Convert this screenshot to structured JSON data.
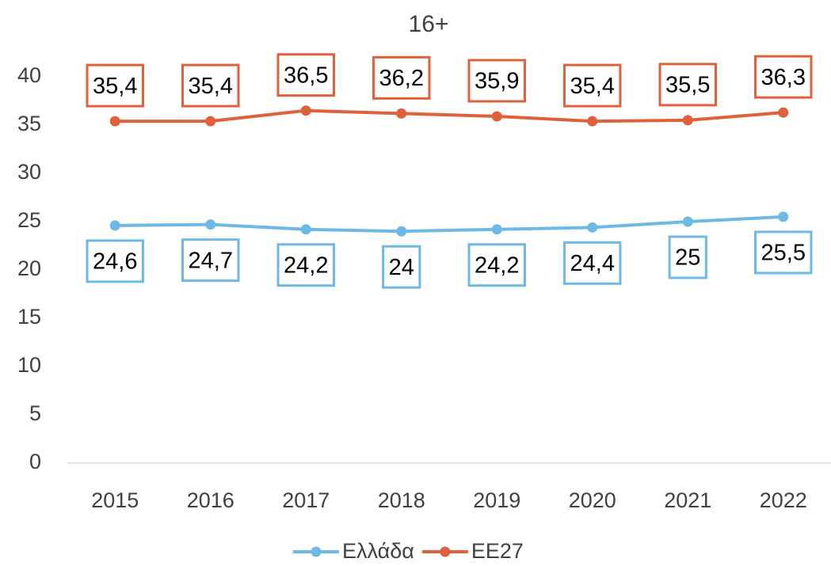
{
  "chart_data": {
    "type": "line",
    "title": "16+",
    "categories": [
      "2015",
      "2016",
      "2017",
      "2018",
      "2019",
      "2020",
      "2021",
      "2022"
    ],
    "series": [
      {
        "name": "Ελλάδα",
        "color": "#6cb8e6",
        "values": [
          24.6,
          24.7,
          24.2,
          24,
          24.2,
          24.4,
          25,
          25.5
        ],
        "value_labels": [
          "24,6",
          "24,7",
          "24,2",
          "24",
          "24,2",
          "24,4",
          "25",
          "25,5"
        ]
      },
      {
        "name": "ΕΕ27",
        "color": "#e0603a",
        "values": [
          35.4,
          35.4,
          36.5,
          36.2,
          35.9,
          35.4,
          35.5,
          36.3
        ],
        "value_labels": [
          "35,4",
          "35,4",
          "36,5",
          "36,2",
          "35,9",
          "35,4",
          "35,5",
          "36,3"
        ]
      }
    ],
    "ylim": [
      0,
      40
    ],
    "yticks": [
      0,
      5,
      10,
      15,
      20,
      25,
      30,
      35,
      40
    ],
    "grid": false,
    "legend": "bottom"
  }
}
